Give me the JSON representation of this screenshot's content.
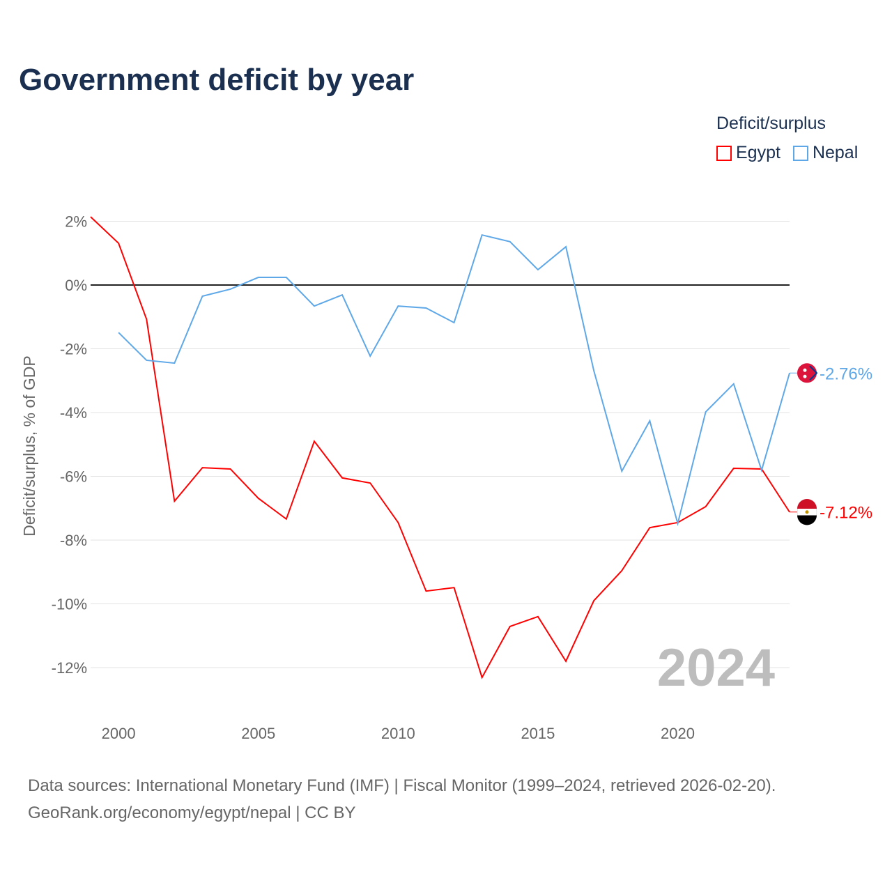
{
  "chart_data": {
    "type": "line",
    "title": "Government deficit by year",
    "ylabel": "Deficit/surplus, % of GDP",
    "xlabel": "",
    "ylim": [
      -13.5,
      2.3
    ],
    "xlim": [
      1999,
      2024
    ],
    "yticks": [
      2,
      0,
      -2,
      -4,
      -6,
      -8,
      -10,
      -12
    ],
    "ytick_labels": [
      "2%",
      "0%",
      "-2%",
      "-4%",
      "-6%",
      "-8%",
      "-10%",
      "-12%"
    ],
    "xticks": [
      2000,
      2005,
      2010,
      2015,
      2020
    ],
    "xtick_labels": [
      "2000",
      "2005",
      "2010",
      "2015",
      "2020"
    ],
    "grid": true,
    "legend_title": "Deficit/surplus",
    "legend_position": "top-right",
    "year_watermark": "2024",
    "series": [
      {
        "name": "Egypt",
        "color": "#ff0000",
        "end_label": "-7.12%",
        "x": [
          1999,
          2000,
          2001,
          2002,
          2003,
          2004,
          2005,
          2006,
          2007,
          2008,
          2009,
          2010,
          2011,
          2012,
          2013,
          2014,
          2015,
          2016,
          2017,
          2018,
          2019,
          2020,
          2021,
          2022,
          2023,
          2024
        ],
        "values": [
          2.14,
          1.31,
          -1.07,
          -6.78,
          -5.73,
          -5.77,
          -6.69,
          -7.34,
          -4.9,
          -6.05,
          -6.21,
          -7.45,
          -9.6,
          -9.49,
          -12.31,
          -10.71,
          -10.4,
          -11.8,
          -9.9,
          -8.96,
          -7.61,
          -7.45,
          -6.95,
          -5.75,
          -5.77,
          -7.12
        ]
      },
      {
        "name": "Nepal",
        "color": "#5fa8e8",
        "end_label": "-2.76%",
        "x": [
          2000,
          2001,
          2002,
          2003,
          2004,
          2005,
          2006,
          2007,
          2008,
          2009,
          2010,
          2011,
          2012,
          2013,
          2014,
          2015,
          2016,
          2017,
          2018,
          2019,
          2020,
          2021,
          2022,
          2023,
          2024
        ],
        "values": [
          -1.49,
          -2.36,
          -2.45,
          -0.35,
          -0.13,
          0.24,
          0.24,
          -0.66,
          -0.31,
          -2.23,
          -0.66,
          -0.72,
          -1.18,
          1.57,
          1.36,
          0.48,
          1.2,
          -2.69,
          -5.84,
          -4.26,
          -7.48,
          -3.98,
          -3.1,
          -5.81,
          -2.76
        ]
      }
    ]
  },
  "footer": {
    "line1": "Data sources: International Monetary Fund (IMF) | Fiscal Monitor (1999–2024, retrieved 2026-02-20).",
    "line2": "GeoRank.org/economy/egypt/nepal | CC BY"
  }
}
